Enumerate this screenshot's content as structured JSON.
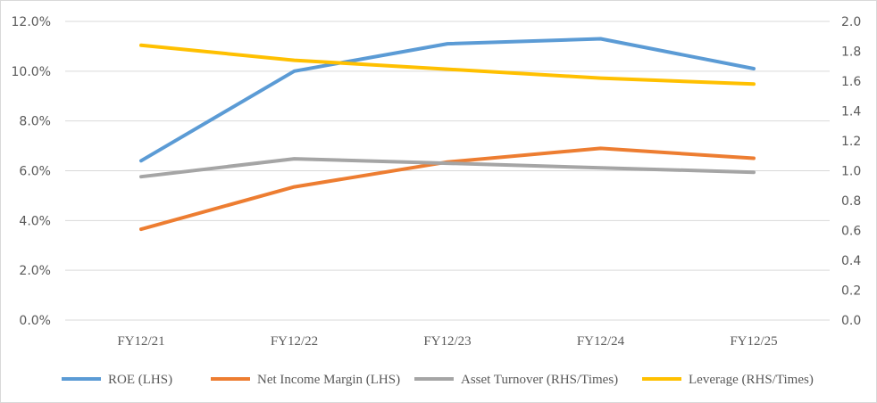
{
  "chart_data": {
    "type": "line",
    "categories": [
      "FY12/21",
      "FY12/22",
      "FY12/23",
      "FY12/24",
      "FY12/25"
    ],
    "y_left": {
      "ticks": [
        "0.0%",
        "2.0%",
        "4.0%",
        "6.0%",
        "8.0%",
        "10.0%",
        "12.0%"
      ],
      "range": [
        0,
        12
      ]
    },
    "y_right": {
      "ticks": [
        "0.0",
        "0.2",
        "0.4",
        "0.6",
        "0.8",
        "1.0",
        "1.2",
        "1.4",
        "1.6",
        "1.8",
        "2.0"
      ],
      "range": [
        0,
        2.0
      ]
    },
    "grid": "horizontal",
    "legend_position": "bottom",
    "series": [
      {
        "name": "ROE (LHS)",
        "axis": "left",
        "color": "#5b9bd5",
        "values": [
          6.4,
          10.0,
          11.1,
          11.3,
          10.1
        ]
      },
      {
        "name": "Net Income Margin (LHS)",
        "axis": "left",
        "color": "#ed7d31",
        "values": [
          3.65,
          5.35,
          6.35,
          6.9,
          6.5
        ]
      },
      {
        "name": "Asset Turnover (RHS/Times)",
        "axis": "right",
        "color": "#a5a5a5",
        "values": [
          0.96,
          1.08,
          1.05,
          1.02,
          0.99
        ]
      },
      {
        "name": "Leverage (RHS/Times)",
        "axis": "right",
        "color": "#ffc000",
        "values": [
          1.84,
          1.74,
          1.68,
          1.62,
          1.58
        ]
      }
    ]
  }
}
